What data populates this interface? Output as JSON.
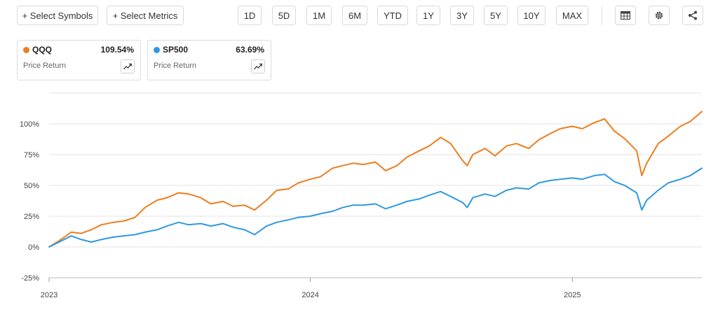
{
  "toolbar": {
    "select_symbols": "+ Select Symbols",
    "select_metrics": "+ Select Metrics",
    "ranges": [
      "1D",
      "5D",
      "1M",
      "6M",
      "YTD",
      "1Y",
      "3Y",
      "5Y",
      "10Y",
      "MAX"
    ],
    "icons": [
      "table-icon",
      "gear-icon",
      "share-icon"
    ]
  },
  "legend_cards": [
    {
      "symbol": "QQQ",
      "value": "109.54%",
      "subtitle": "Price Return",
      "color": "#ee7d1e"
    },
    {
      "symbol": "SP500",
      "value": "63.69%",
      "subtitle": "Price Return",
      "color": "#2e99e0"
    }
  ],
  "chart_data": {
    "type": "line",
    "title": "",
    "xlabel": "",
    "ylabel": "",
    "x_ticks": [
      "2023",
      "2024",
      "2025"
    ],
    "y_ticks": [
      "100%",
      "75%",
      "50%",
      "25%",
      "0%",
      "-25%"
    ],
    "ylim": [
      -25,
      125
    ],
    "xlim": [
      "2023-01-01",
      "2025-07-01"
    ],
    "grid": true,
    "series": [
      {
        "name": "QQQ",
        "color": "#ee7d1e",
        "x": [
          "2023-01-01",
          "2023-01-15",
          "2023-02-01",
          "2023-02-15",
          "2023-03-01",
          "2023-03-15",
          "2023-04-01",
          "2023-04-15",
          "2023-05-01",
          "2023-05-15",
          "2023-06-01",
          "2023-06-15",
          "2023-07-01",
          "2023-07-15",
          "2023-08-01",
          "2023-08-15",
          "2023-09-01",
          "2023-09-15",
          "2023-10-01",
          "2023-10-15",
          "2023-11-01",
          "2023-11-15",
          "2023-12-01",
          "2023-12-15",
          "2024-01-01",
          "2024-01-15",
          "2024-02-01",
          "2024-02-15",
          "2024-03-01",
          "2024-03-15",
          "2024-04-01",
          "2024-04-15",
          "2024-05-01",
          "2024-05-15",
          "2024-06-01",
          "2024-06-15",
          "2024-07-01",
          "2024-07-15",
          "2024-08-01",
          "2024-08-07",
          "2024-08-15",
          "2024-09-01",
          "2024-09-15",
          "2024-10-01",
          "2024-10-15",
          "2024-11-01",
          "2024-11-15",
          "2024-12-01",
          "2024-12-15",
          "2025-01-01",
          "2025-01-15",
          "2025-02-01",
          "2025-02-15",
          "2025-03-01",
          "2025-03-15",
          "2025-04-01",
          "2025-04-08",
          "2025-04-15",
          "2025-05-01",
          "2025-05-15",
          "2025-06-01",
          "2025-06-15",
          "2025-07-01"
        ],
        "values": [
          0,
          5,
          12,
          11,
          14,
          18,
          20,
          21,
          24,
          32,
          38,
          40,
          44,
          43,
          40,
          35,
          37,
          33,
          34,
          30,
          38,
          46,
          47,
          52,
          55,
          57,
          64,
          66,
          68,
          67,
          69,
          62,
          66,
          73,
          78,
          82,
          89,
          84,
          70,
          66,
          75,
          80,
          74,
          82,
          84,
          80,
          87,
          92,
          96,
          98,
          96,
          101,
          104,
          94,
          88,
          78,
          58,
          68,
          84,
          90,
          98,
          102,
          110
        ]
      },
      {
        "name": "SP500",
        "color": "#2e99e0",
        "x": [
          "2023-01-01",
          "2023-01-15",
          "2023-02-01",
          "2023-02-15",
          "2023-03-01",
          "2023-03-15",
          "2023-04-01",
          "2023-04-15",
          "2023-05-01",
          "2023-05-15",
          "2023-06-01",
          "2023-06-15",
          "2023-07-01",
          "2023-07-15",
          "2023-08-01",
          "2023-08-15",
          "2023-09-01",
          "2023-09-15",
          "2023-10-01",
          "2023-10-15",
          "2023-11-01",
          "2023-11-15",
          "2023-12-01",
          "2023-12-15",
          "2024-01-01",
          "2024-01-15",
          "2024-02-01",
          "2024-02-15",
          "2024-03-01",
          "2024-03-15",
          "2024-04-01",
          "2024-04-15",
          "2024-05-01",
          "2024-05-15",
          "2024-06-01",
          "2024-06-15",
          "2024-07-01",
          "2024-07-15",
          "2024-08-01",
          "2024-08-07",
          "2024-08-15",
          "2024-09-01",
          "2024-09-15",
          "2024-10-01",
          "2024-10-15",
          "2024-11-01",
          "2024-11-15",
          "2024-12-01",
          "2024-12-15",
          "2025-01-01",
          "2025-01-15",
          "2025-02-01",
          "2025-02-15",
          "2025-03-01",
          "2025-03-15",
          "2025-04-01",
          "2025-04-08",
          "2025-04-15",
          "2025-05-01",
          "2025-05-15",
          "2025-06-01",
          "2025-06-15",
          "2025-07-01"
        ],
        "values": [
          0,
          4,
          9,
          6,
          4,
          6,
          8,
          9,
          10,
          12,
          14,
          17,
          20,
          18,
          19,
          17,
          19,
          16,
          14,
          10,
          17,
          20,
          22,
          24,
          25,
          27,
          29,
          32,
          34,
          34,
          35,
          31,
          34,
          37,
          39,
          42,
          45,
          41,
          36,
          32,
          40,
          43,
          41,
          46,
          48,
          47,
          52,
          54,
          55,
          56,
          55,
          58,
          59,
          53,
          50,
          44,
          30,
          38,
          46,
          52,
          55,
          58,
          64
        ]
      }
    ]
  }
}
